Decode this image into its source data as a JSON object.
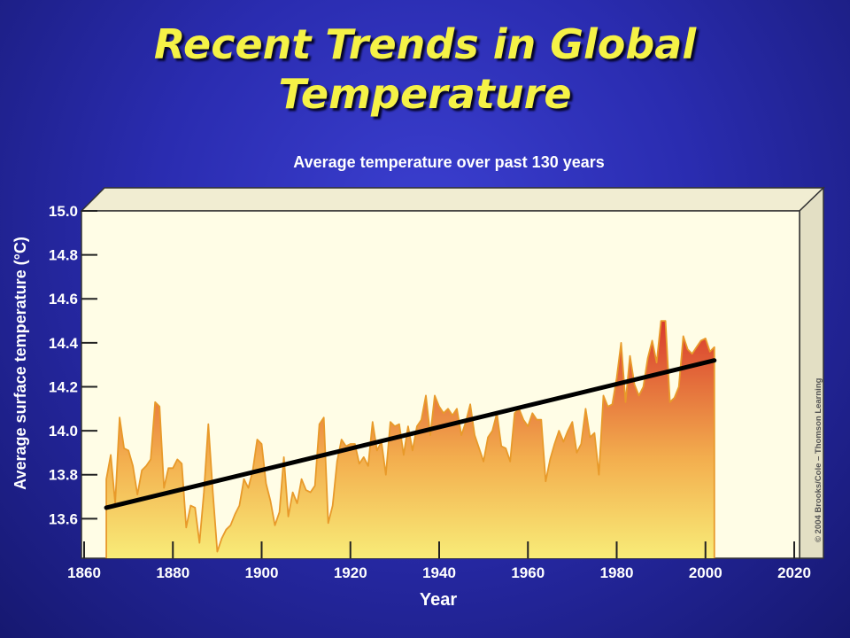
{
  "slide": {
    "title": "Recent Trends in Global Temperature"
  },
  "chart_data": {
    "type": "area",
    "title": "Average temperature over past 130 years",
    "xlabel": "Year",
    "ylabel": "Average surface temperature (°C)",
    "xlim": [
      1860,
      2020
    ],
    "ylim": [
      13.42,
      15.0
    ],
    "x_ticks": [
      "1860",
      "1880",
      "1900",
      "1920",
      "1940",
      "1960",
      "1980",
      "2000",
      "2020"
    ],
    "y_ticks": [
      "13.6",
      "13.8",
      "14.0",
      "14.2",
      "14.4",
      "14.6",
      "14.8",
      "15.0"
    ],
    "copyright": "© 2004 Brooks/Cole – Thomson Learning",
    "colors": {
      "area_bottom": "#f8ec78",
      "area_middle": "#f3ae4e",
      "area_top": "#d83a2c",
      "outline": "#e89a2a",
      "trend": "#000000",
      "plot_bg": "#fffde6"
    },
    "series": [
      {
        "name": "",
        "x": [
          1865,
          1866,
          1867,
          1868,
          1869,
          1870,
          1871,
          1872,
          1873,
          1874,
          1875,
          1876,
          1877,
          1878,
          1879,
          1880,
          1881,
          1882,
          1883,
          1884,
          1885,
          1886,
          1887,
          1888,
          1889,
          1890,
          1891,
          1892,
          1893,
          1894,
          1895,
          1896,
          1897,
          1898,
          1899,
          1900,
          1901,
          1902,
          1903,
          1904,
          1905,
          1906,
          1907,
          1908,
          1909,
          1910,
          1911,
          1912,
          1913,
          1914,
          1915,
          1916,
          1917,
          1918,
          1919,
          1920,
          1921,
          1922,
          1923,
          1924,
          1925,
          1926,
          1927,
          1928,
          1929,
          1930,
          1931,
          1932,
          1933,
          1934,
          1935,
          1936,
          1937,
          1938,
          1939,
          1940,
          1941,
          1942,
          1943,
          1944,
          1945,
          1946,
          1947,
          1948,
          1949,
          1950,
          1951,
          1952,
          1953,
          1954,
          1955,
          1956,
          1957,
          1958,
          1959,
          1960,
          1961,
          1962,
          1963,
          1964,
          1965,
          1966,
          1967,
          1968,
          1969,
          1970,
          1971,
          1972,
          1973,
          1974,
          1975,
          1976,
          1977,
          1978,
          1979,
          1980,
          1981,
          1982,
          1983,
          1984,
          1985,
          1986,
          1987,
          1988,
          1989,
          1990,
          1991,
          1992,
          1993,
          1994,
          1995,
          1996,
          1997,
          1998,
          1999,
          2000,
          2001,
          2002
        ],
        "values": [
          13.78,
          13.89,
          13.67,
          14.06,
          13.92,
          13.91,
          13.84,
          13.71,
          13.82,
          13.84,
          13.87,
          14.13,
          14.11,
          13.74,
          13.83,
          13.83,
          13.87,
          13.85,
          13.56,
          13.66,
          13.65,
          13.49,
          13.72,
          14.03,
          13.72,
          13.45,
          13.51,
          13.55,
          13.57,
          13.62,
          13.66,
          13.78,
          13.74,
          13.82,
          13.96,
          13.94,
          13.76,
          13.68,
          13.57,
          13.63,
          13.88,
          13.61,
          13.72,
          13.67,
          13.78,
          13.73,
          13.72,
          13.75,
          14.03,
          14.06,
          13.58,
          13.66,
          13.86,
          13.96,
          13.93,
          13.94,
          13.94,
          13.85,
          13.88,
          13.84,
          14.04,
          13.91,
          13.95,
          13.8,
          14.04,
          14.02,
          14.03,
          13.89,
          14.02,
          13.91,
          14.02,
          14.05,
          14.16,
          13.98,
          14.16,
          14.11,
          14.08,
          14.1,
          14.07,
          14.1,
          13.98,
          14.04,
          14.12,
          13.98,
          13.92,
          13.86,
          13.97,
          14.0,
          14.08,
          13.93,
          13.92,
          13.86,
          14.08,
          14.1,
          14.05,
          14.02,
          14.08,
          14.05,
          14.05,
          13.77,
          13.87,
          13.94,
          14.0,
          13.95,
          14.0,
          14.04,
          13.9,
          13.94,
          14.1,
          13.97,
          13.99,
          13.8,
          14.16,
          14.11,
          14.12,
          14.24,
          14.4,
          14.13,
          14.34,
          14.21,
          14.16,
          14.2,
          14.33,
          14.41,
          14.31,
          14.5,
          14.5,
          14.13,
          14.15,
          14.2,
          14.43,
          14.37,
          14.35,
          14.38,
          14.41,
          14.42,
          14.36,
          14.38
        ]
      }
    ],
    "trend": {
      "x": [
        1865,
        2002
      ],
      "y": [
        13.65,
        14.32
      ]
    }
  }
}
